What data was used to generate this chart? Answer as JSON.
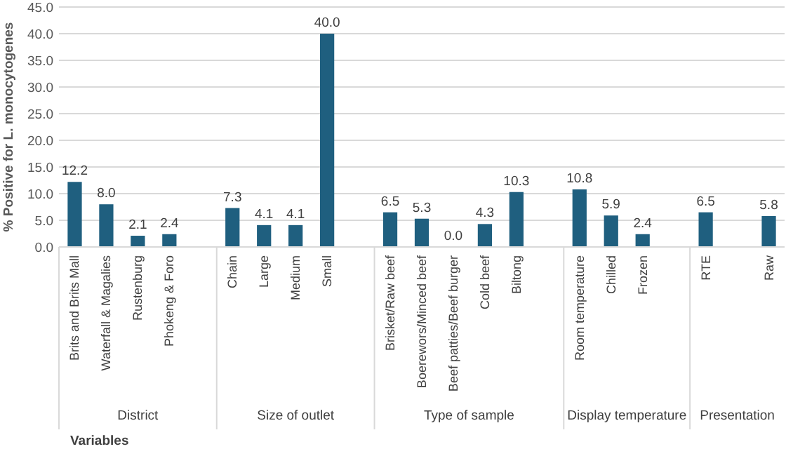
{
  "chart_data": {
    "type": "bar",
    "xlabel": "Variables",
    "ylabel": "% Positive for L. monocytogenes",
    "categories": [
      "Brits and Brits Mall",
      "Waterfall & Magalies",
      "Rustenburg",
      "Phokeng & Foro",
      null,
      "Chain",
      "Large",
      "Medium",
      "Small",
      null,
      "Brisket/Raw beef",
      "Boerewors/Minced beef",
      "Beef patties/Beef burger",
      "Cold beef",
      "Biltong",
      null,
      "Room temperature",
      "Chilled",
      "Frozen",
      null,
      "RTE",
      null,
      "Raw"
    ],
    "values": [
      12.2,
      8.0,
      2.1,
      2.4,
      null,
      7.3,
      4.1,
      4.1,
      40.0,
      null,
      6.5,
      5.3,
      0.0,
      4.3,
      10.3,
      null,
      10.8,
      5.9,
      2.4,
      null,
      6.5,
      null,
      5.8
    ],
    "value_labels": [
      "12.2",
      "8.0",
      "2.1",
      "2.4",
      null,
      "7.3",
      "4.1",
      "4.1",
      "40.0",
      null,
      "6.5",
      "5.3",
      "0.0",
      "4.3",
      "10.3",
      null,
      "10.8",
      "5.9",
      "2.4",
      null,
      "6.5",
      null,
      "5.8"
    ],
    "color": "#1f5f7f",
    "ylim": [
      0,
      45
    ],
    "yticks": [
      {
        "value": 0,
        "label": "0.0"
      },
      {
        "value": 5,
        "label": "5.0"
      },
      {
        "value": 10,
        "label": "10.0"
      },
      {
        "value": 15,
        "label": "15.0"
      },
      {
        "value": 20,
        "label": "20.0"
      },
      {
        "value": 25,
        "label": "25.0"
      },
      {
        "value": 30,
        "label": "30.0"
      },
      {
        "value": 35,
        "label": "35.0"
      },
      {
        "value": 40,
        "label": "40.0"
      },
      {
        "value": 45,
        "label": "45.0"
      }
    ],
    "grid": "y",
    "annotations": [
      "District",
      "Size of outlet",
      "Type of sample",
      "Display temperature",
      "Presentation"
    ]
  }
}
